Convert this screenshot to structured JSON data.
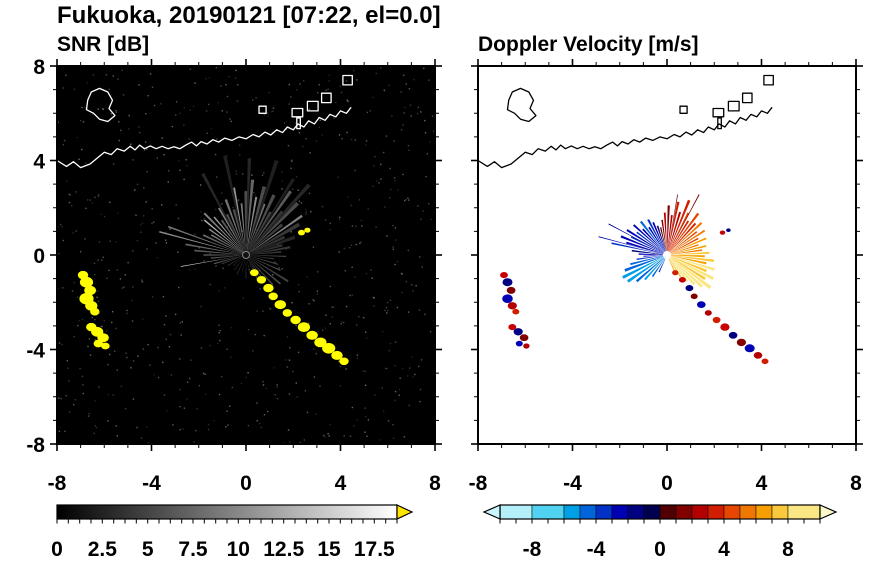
{
  "title": "Fukuoka, 20190121 [07:22, el=0.0]",
  "panels": {
    "snr": {
      "label": "SNR [dB]"
    },
    "velocity": {
      "label": "Doppler Velocity [m/s]"
    }
  },
  "clutter_points": [
    [
      -6.9,
      -0.85,
      0.22
    ],
    [
      -6.75,
      -1.15,
      0.28
    ],
    [
      -6.6,
      -1.5,
      0.25
    ],
    [
      -6.75,
      -1.85,
      0.3
    ],
    [
      -6.55,
      -2.15,
      0.26
    ],
    [
      -6.4,
      -2.4,
      0.2
    ],
    [
      -6.55,
      -3.05,
      0.22
    ],
    [
      -6.3,
      -3.25,
      0.26
    ],
    [
      -6.05,
      -3.5,
      0.24
    ],
    [
      -6.25,
      -3.75,
      0.2
    ],
    [
      -5.95,
      -3.85,
      0.18
    ],
    [
      0.35,
      -0.75,
      0.18
    ],
    [
      0.65,
      -1.05,
      0.2
    ],
    [
      0.95,
      -1.4,
      0.22
    ],
    [
      1.15,
      -1.75,
      0.2
    ],
    [
      1.45,
      -2.1,
      0.24
    ],
    [
      1.75,
      -2.45,
      0.2
    ],
    [
      2.1,
      -2.75,
      0.22
    ],
    [
      2.45,
      -3.05,
      0.26
    ],
    [
      2.8,
      -3.4,
      0.24
    ],
    [
      3.15,
      -3.7,
      0.26
    ],
    [
      3.5,
      -3.95,
      0.28
    ],
    [
      3.85,
      -4.25,
      0.24
    ],
    [
      4.15,
      -4.5,
      0.2
    ],
    [
      2.35,
      0.95,
      0.15
    ],
    [
      2.6,
      1.05,
      0.13
    ]
  ],
  "coastline": {
    "main": [
      [
        -8,
        4.0
      ],
      [
        -7.6,
        3.75
      ],
      [
        -7.3,
        3.95
      ],
      [
        -7.0,
        3.7
      ],
      [
        -6.6,
        3.85
      ],
      [
        -6.3,
        4.1
      ],
      [
        -6.0,
        4.35
      ],
      [
        -5.7,
        4.25
      ],
      [
        -5.45,
        4.5
      ],
      [
        -5.15,
        4.4
      ],
      [
        -4.9,
        4.6
      ],
      [
        -4.7,
        4.45
      ],
      [
        -4.5,
        4.65
      ],
      [
        -4.3,
        4.5
      ],
      [
        -4.05,
        4.62
      ],
      [
        -3.8,
        4.5
      ],
      [
        -3.55,
        4.6
      ],
      [
        -3.3,
        4.5
      ],
      [
        -3.05,
        4.58
      ],
      [
        -2.8,
        4.5
      ],
      [
        -2.55,
        4.65
      ],
      [
        -2.3,
        4.78
      ],
      [
        -2.1,
        4.62
      ],
      [
        -1.9,
        4.8
      ],
      [
        -1.65,
        4.7
      ],
      [
        -1.4,
        4.88
      ],
      [
        -1.15,
        4.78
      ],
      [
        -0.9,
        4.95
      ],
      [
        -0.6,
        4.85
      ],
      [
        -0.3,
        5.0
      ],
      [
        0.0,
        4.92
      ],
      [
        0.3,
        5.1
      ],
      [
        0.55,
        5.0
      ],
      [
        0.8,
        5.2
      ],
      [
        1.05,
        5.08
      ],
      [
        1.3,
        5.3
      ],
      [
        1.55,
        5.18
      ],
      [
        1.75,
        5.42
      ],
      [
        2.0,
        5.3
      ],
      [
        2.2,
        5.55
      ],
      [
        2.45,
        5.42
      ],
      [
        2.65,
        5.68
      ],
      [
        2.9,
        5.55
      ],
      [
        3.1,
        5.82
      ],
      [
        3.35,
        5.7
      ],
      [
        3.55,
        5.95
      ],
      [
        3.8,
        5.85
      ],
      [
        4.0,
        6.1
      ],
      [
        4.25,
        6.0
      ],
      [
        4.45,
        6.25
      ]
    ],
    "islands": [
      [
        [
          -6.55,
          6.9
        ],
        [
          -6.2,
          7.05
        ],
        [
          -5.85,
          6.9
        ],
        [
          -5.65,
          6.55
        ],
        [
          -5.8,
          6.2
        ],
        [
          -5.55,
          5.9
        ],
        [
          -5.85,
          5.65
        ],
        [
          -6.2,
          5.75
        ],
        [
          -6.45,
          6.0
        ],
        [
          -6.75,
          6.15
        ],
        [
          -6.7,
          6.55
        ]
      ],
      [
        [
          1.95,
          5.85
        ],
        [
          2.4,
          5.85
        ],
        [
          2.4,
          6.2
        ],
        [
          1.95,
          6.2
        ]
      ],
      [
        [
          2.6,
          6.1
        ],
        [
          3.05,
          6.1
        ],
        [
          3.05,
          6.5
        ],
        [
          2.6,
          6.5
        ]
      ],
      [
        [
          3.2,
          6.45
        ],
        [
          3.6,
          6.45
        ],
        [
          3.6,
          6.85
        ],
        [
          3.2,
          6.85
        ]
      ],
      [
        [
          2.15,
          5.35
        ],
        [
          2.3,
          5.35
        ],
        [
          2.3,
          5.8
        ],
        [
          2.15,
          5.8
        ]
      ],
      [
        [
          0.55,
          6.0
        ],
        [
          0.85,
          6.0
        ],
        [
          0.85,
          6.3
        ],
        [
          0.55,
          6.3
        ]
      ],
      [
        [
          4.1,
          7.2
        ],
        [
          4.5,
          7.2
        ],
        [
          4.5,
          7.6
        ],
        [
          4.1,
          7.6
        ]
      ]
    ]
  },
  "chart_data": [
    {
      "type": "radar_ppi",
      "title": "SNR [dB]",
      "xlabel": "",
      "ylabel": "",
      "xlim": [
        -8,
        8
      ],
      "ylim": [
        -8,
        8
      ],
      "xticks": [
        -8,
        -4,
        0,
        4,
        8
      ],
      "yticks": [
        -8,
        -4,
        0,
        4,
        8
      ],
      "minor_tick_step": 1,
      "background": "#000000",
      "coast_color": "#ffffff",
      "noise_dots": 700,
      "clutter_color": "#ffff00",
      "beam_format": [
        "azimuth_deg_ccw_from_east",
        "range_km",
        "snr_db",
        "half_width_deg"
      ],
      "beams": [
        [
          15,
          1.6,
          3.4,
          2
        ],
        [
          20,
          2.2,
          2.8,
          2
        ],
        [
          25,
          1.8,
          3.8,
          2
        ],
        [
          30,
          2.6,
          4.1,
          1.8
        ],
        [
          35,
          2.9,
          9.4,
          1
        ],
        [
          40,
          2.0,
          4.7,
          1.8
        ],
        [
          45,
          3.1,
          5.6,
          1.5
        ],
        [
          50,
          2.4,
          3.8,
          1.8
        ],
        [
          55,
          3.3,
          6.6,
          1.2
        ],
        [
          60,
          2.1,
          4.7,
          1.8
        ],
        [
          65,
          2.8,
          5.6,
          1.5
        ],
        [
          70,
          2.3,
          8.4,
          1.2
        ],
        [
          75,
          3.0,
          5.6,
          1.5
        ],
        [
          80,
          2.5,
          10.3,
          1
        ],
        [
          85,
          3.2,
          7.5,
          1.2
        ],
        [
          90,
          2.7,
          5.6,
          1.5
        ],
        [
          95,
          2.2,
          9.4,
          1
        ],
        [
          100,
          2.9,
          11.3,
          0.8
        ],
        [
          105,
          2.0,
          5.6,
          1.5
        ],
        [
          110,
          2.5,
          8.4,
          1.2
        ],
        [
          115,
          1.9,
          5.6,
          1.5
        ],
        [
          120,
          2.3,
          9.4,
          1
        ],
        [
          125,
          1.8,
          6.6,
          1.4
        ],
        [
          130,
          2.1,
          11.3,
          0.9
        ],
        [
          135,
          2.5,
          9.4,
          1
        ],
        [
          140,
          2.3,
          13.1,
          0.8
        ],
        [
          145,
          1.9,
          10.3,
          1
        ],
        [
          150,
          1.7,
          9.4,
          1
        ],
        [
          155,
          2.0,
          7.5,
          1.2
        ],
        [
          160,
          3.5,
          8.4,
          0.6
        ],
        [
          165,
          3.8,
          10.3,
          0.5
        ],
        [
          170,
          2.6,
          7.5,
          0.8
        ],
        [
          175,
          2.2,
          6.6,
          1
        ],
        [
          180,
          1.8,
          5.6,
          1.2
        ],
        [
          185,
          1.5,
          6.6,
          1
        ],
        [
          190,
          2.8,
          15.0,
          0.35
        ],
        [
          195,
          1.4,
          7.5,
          0.9
        ],
        [
          200,
          1.1,
          5.6,
          1
        ],
        [
          210,
          0.9,
          4.1,
          1.2
        ],
        [
          220,
          0.7,
          3.4,
          1.2
        ],
        [
          232,
          0.8,
          3.8,
          1
        ],
        [
          245,
          0.9,
          4.1,
          1
        ],
        [
          258,
          0.7,
          3.8,
          1
        ],
        [
          270,
          1.0,
          4.1,
          1
        ],
        [
          282,
          0.8,
          3.8,
          1
        ],
        [
          295,
          1.1,
          5.6,
          0.9
        ],
        [
          300,
          1.4,
          14.1,
          0.4
        ],
        [
          305,
          1.2,
          6.6,
          0.9
        ],
        [
          312,
          1.7,
          5.6,
          1
        ],
        [
          320,
          1.9,
          5.3,
          1.2
        ],
        [
          328,
          2.1,
          4.7,
          1.2
        ],
        [
          336,
          1.6,
          5.6,
          1
        ],
        [
          344,
          1.4,
          5.6,
          1
        ],
        [
          352,
          1.2,
          5.3,
          1
        ],
        [
          358,
          1.7,
          4.7,
          1
        ],
        [
          5,
          1.5,
          3.8,
          1.5
        ],
        [
          10,
          1.9,
          4.1,
          1.5
        ],
        [
          48,
          4.0,
          2.8,
          1.2
        ],
        [
          88,
          4.1,
          2.8,
          1
        ],
        [
          118,
          3.9,
          2.8,
          1
        ],
        [
          72,
          4.2,
          2.3,
          1.2
        ],
        [
          102,
          4.3,
          2.3,
          1
        ],
        [
          58,
          3.8,
          2.3,
          1
        ]
      ],
      "colorbar": {
        "range": [
          0,
          18.75
        ],
        "tick_values": [
          0,
          2.5,
          5,
          7.5,
          10,
          12.5,
          15,
          17.5
        ],
        "tick_labels": [
          "0",
          "2.5",
          "5",
          "7.5",
          "10",
          "12.5",
          "15",
          "17.5"
        ],
        "minor_step": 0.625,
        "style": "grayscale",
        "end_arrow": "right",
        "arrow_color": "#ffe600"
      }
    },
    {
      "type": "radar_ppi",
      "title": "Doppler Velocity [m/s]",
      "xlabel": "",
      "ylabel": "",
      "xlim": [
        -8,
        8
      ],
      "ylim": [
        -8,
        8
      ],
      "xticks": [
        -8,
        -4,
        0,
        4,
        8
      ],
      "yticks": [
        -8,
        -4,
        0,
        4,
        8
      ],
      "minor_tick_step": 1,
      "background": "#ffffff",
      "coast_color": "#000000",
      "noise_dots": 0,
      "clutter_palette": [
        "#c80000",
        "#000082",
        "#820000",
        "#0000b4",
        "#b40000",
        "#d21e00"
      ],
      "beam_format": [
        "azimuth_deg_ccw_from_east",
        "range_km",
        "velocity_mps",
        "half_width_deg"
      ],
      "beams": [
        [
          108,
          1.3,
          -1.5,
          1.5
        ],
        [
          113,
          1.5,
          -2.5,
          1.5
        ],
        [
          118,
          1.7,
          -3.5,
          1.5
        ],
        [
          123,
          1.4,
          -2.5,
          1.5
        ],
        [
          128,
          1.8,
          -4.5,
          1.5
        ],
        [
          133,
          1.5,
          -3,
          1.5
        ],
        [
          138,
          1.9,
          -2.5,
          1.3
        ],
        [
          143,
          1.6,
          -3.5,
          1.3
        ],
        [
          148,
          2.0,
          -2.5,
          1.3
        ],
        [
          153,
          1.7,
          -4,
          1.3
        ],
        [
          158,
          2.1,
          -2.5,
          1.3
        ],
        [
          163,
          1.8,
          -3,
          1.3
        ],
        [
          168,
          2.4,
          -4,
          0.8
        ],
        [
          173,
          1.5,
          -2,
          1.3
        ],
        [
          178,
          1.2,
          -2.5,
          1.3
        ],
        [
          183,
          1.0,
          -3,
          1.3
        ],
        [
          188,
          1.3,
          -3.5,
          1.3
        ],
        [
          194,
          1.6,
          -4.5,
          1.5
        ],
        [
          200,
          1.9,
          -5,
          1.8
        ],
        [
          207,
          2.1,
          -5.5,
          1.8
        ],
        [
          214,
          2.0,
          -6,
          1.8
        ],
        [
          221,
          1.7,
          -5,
          1.8
        ],
        [
          228,
          1.4,
          -5.5,
          1.8
        ],
        [
          236,
          1.1,
          -4.5,
          1.8
        ],
        [
          245,
          0.8,
          -3.5,
          1.8
        ],
        [
          152,
          2.8,
          -2,
          0.4
        ],
        [
          165,
          3.0,
          -3,
          0.35
        ],
        [
          103,
          1.2,
          0.8,
          1.3
        ],
        [
          98,
          1.5,
          1.5,
          1.3
        ],
        [
          93,
          1.8,
          2.5,
          1.3
        ],
        [
          88,
          2.1,
          1.8,
          1.3
        ],
        [
          83,
          1.7,
          2.8,
          1.3
        ],
        [
          78,
          2.3,
          3.5,
          1.3
        ],
        [
          73,
          1.9,
          2.5,
          1.3
        ],
        [
          68,
          2.5,
          3.2,
          1.3
        ],
        [
          63,
          2.0,
          4,
          1.3
        ],
        [
          58,
          1.7,
          3,
          1.3
        ],
        [
          53,
          2.2,
          4.5,
          1.3
        ],
        [
          48,
          1.8,
          3.5,
          1.3
        ],
        [
          43,
          2.0,
          5,
          1.3
        ],
        [
          38,
          1.6,
          4.2,
          1.3
        ],
        [
          33,
          1.9,
          5.5,
          1.3
        ],
        [
          28,
          1.5,
          4.8,
          1.3
        ],
        [
          23,
          1.8,
          6,
          1.3
        ],
        [
          18,
          1.4,
          5.2,
          1.3
        ],
        [
          13,
          1.7,
          6.5,
          1.3
        ],
        [
          8,
          1.5,
          5.8,
          1.3
        ],
        [
          3,
          1.8,
          7,
          1.3
        ],
        [
          -2,
          1.6,
          6.2,
          1.5
        ],
        [
          -7,
          2.0,
          7.5,
          1.5
        ],
        [
          -12,
          1.7,
          6.8,
          1.5
        ],
        [
          -17,
          2.1,
          8,
          1.5
        ],
        [
          -22,
          1.8,
          7.2,
          1.8
        ],
        [
          -27,
          2.2,
          8.5,
          1.8
        ],
        [
          -32,
          1.9,
          7.8,
          1.8
        ],
        [
          -37,
          2.3,
          9,
          1.8
        ],
        [
          -42,
          2.0,
          8.2,
          1.8
        ],
        [
          -47,
          1.7,
          9.2,
          1.8
        ],
        [
          -52,
          1.4,
          8.5,
          1.8
        ],
        [
          -58,
          1.1,
          7.5,
          1.8
        ],
        [
          -65,
          0.9,
          6.5,
          1.8
        ],
        [
          62,
          2.9,
          1.2,
          0.4
        ],
        [
          80,
          2.6,
          0.8,
          0.35
        ]
      ],
      "colorbar": {
        "range": [
          -10,
          10
        ],
        "tick_values": [
          -8,
          -4,
          0,
          4,
          8
        ],
        "tick_labels": [
          "-8",
          "-4",
          "0",
          "4",
          "8"
        ],
        "minor_step": 1,
        "style": "segments",
        "left_arrow_color": "#c8f5ff",
        "right_arrow_color": "#fdf8c8",
        "stops": [
          [
            -10,
            "#b4f0fa"
          ],
          [
            -8,
            "#50d2f0"
          ],
          [
            -6,
            "#00a0e6"
          ],
          [
            -5,
            "#0064dc"
          ],
          [
            -4,
            "#0032c8"
          ],
          [
            -3,
            "#0000b4"
          ],
          [
            -2,
            "#000082"
          ],
          [
            -1,
            "#000050"
          ],
          [
            0,
            "#500000"
          ],
          [
            1,
            "#820000"
          ],
          [
            2,
            "#b40000"
          ],
          [
            3,
            "#d21e00"
          ],
          [
            4,
            "#e64600"
          ],
          [
            5,
            "#f07800"
          ],
          [
            6,
            "#f5a000"
          ],
          [
            7,
            "#fac83c"
          ],
          [
            8,
            "#fae682"
          ],
          [
            10,
            "#fdf5b4"
          ]
        ]
      }
    }
  ]
}
